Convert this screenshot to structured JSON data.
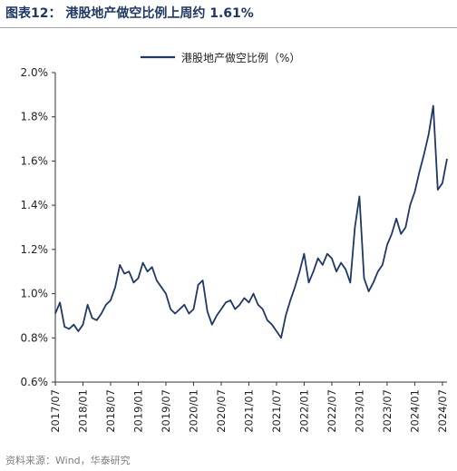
{
  "header": {
    "title": "图表12： 港股地产做空比例上周约 1.61%"
  },
  "source": "资料来源：Wind，华泰研究",
  "colors": {
    "line": "#1f3864",
    "axis": "#333333",
    "title": "#1f3864",
    "source": "#7f7f7f"
  },
  "chart_data": {
    "type": "line",
    "title": "",
    "xlabel": "",
    "ylabel": "",
    "legend": {
      "position": "top-center"
    },
    "grid": false,
    "x_ticks": [
      "2017/07",
      "2018/01",
      "2018/07",
      "2019/01",
      "2019/07",
      "2020/01",
      "2020/07",
      "2021/01",
      "2021/07",
      "2022/01",
      "2022/07",
      "2023/01",
      "2023/07",
      "2024/01",
      "2024/07"
    ],
    "y_ticks": [
      "0.6%",
      "0.8%",
      "1.0%",
      "1.2%",
      "1.4%",
      "1.6%",
      "1.8%",
      "2.0%"
    ],
    "ylim": [
      0.6,
      2.0
    ],
    "xlim": [
      "2017/07",
      "2024/08"
    ],
    "series": [
      {
        "name": "港股地产做空比例（%）",
        "color": "#1f3864",
        "unit": "%",
        "points": [
          [
            "2017/07",
            0.91
          ],
          [
            "2017/08",
            0.96
          ],
          [
            "2017/09",
            0.85
          ],
          [
            "2017/10",
            0.84
          ],
          [
            "2017/11",
            0.86
          ],
          [
            "2017/12",
            0.83
          ],
          [
            "2018/01",
            0.86
          ],
          [
            "2018/02",
            0.95
          ],
          [
            "2018/03",
            0.89
          ],
          [
            "2018/04",
            0.88
          ],
          [
            "2018/05",
            0.91
          ],
          [
            "2018/06",
            0.95
          ],
          [
            "2018/07",
            0.97
          ],
          [
            "2018/08",
            1.03
          ],
          [
            "2018/09",
            1.13
          ],
          [
            "2018/10",
            1.09
          ],
          [
            "2018/11",
            1.1
          ],
          [
            "2018/12",
            1.05
          ],
          [
            "2019/01",
            1.07
          ],
          [
            "2019/02",
            1.14
          ],
          [
            "2019/03",
            1.1
          ],
          [
            "2019/04",
            1.12
          ],
          [
            "2019/05",
            1.06
          ],
          [
            "2019/06",
            1.03
          ],
          [
            "2019/07",
            1.0
          ],
          [
            "2019/08",
            0.93
          ],
          [
            "2019/09",
            0.91
          ],
          [
            "2019/10",
            0.93
          ],
          [
            "2019/11",
            0.95
          ],
          [
            "2019/12",
            0.91
          ],
          [
            "2020/01",
            0.93
          ],
          [
            "2020/02",
            1.04
          ],
          [
            "2020/03",
            1.06
          ],
          [
            "2020/04",
            0.92
          ],
          [
            "2020/05",
            0.86
          ],
          [
            "2020/06",
            0.9
          ],
          [
            "2020/07",
            0.93
          ],
          [
            "2020/08",
            0.96
          ],
          [
            "2020/09",
            0.97
          ],
          [
            "2020/10",
            0.93
          ],
          [
            "2020/11",
            0.95
          ],
          [
            "2020/12",
            0.98
          ],
          [
            "2021/01",
            0.96
          ],
          [
            "2021/02",
            1.0
          ],
          [
            "2021/03",
            0.95
          ],
          [
            "2021/04",
            0.93
          ],
          [
            "2021/05",
            0.88
          ],
          [
            "2021/06",
            0.86
          ],
          [
            "2021/07",
            0.83
          ],
          [
            "2021/08",
            0.8
          ],
          [
            "2021/09",
            0.9
          ],
          [
            "2021/10",
            0.97
          ],
          [
            "2021/11",
            1.03
          ],
          [
            "2021/12",
            1.1
          ],
          [
            "2022/01",
            1.18
          ],
          [
            "2022/02",
            1.05
          ],
          [
            "2022/03",
            1.1
          ],
          [
            "2022/04",
            1.16
          ],
          [
            "2022/05",
            1.13
          ],
          [
            "2022/06",
            1.18
          ],
          [
            "2022/07",
            1.16
          ],
          [
            "2022/08",
            1.1
          ],
          [
            "2022/09",
            1.14
          ],
          [
            "2022/10",
            1.11
          ],
          [
            "2022/11",
            1.05
          ],
          [
            "2022/12",
            1.3
          ],
          [
            "2023/01",
            1.44
          ],
          [
            "2023/02",
            1.07
          ],
          [
            "2023/03",
            1.01
          ],
          [
            "2023/04",
            1.05
          ],
          [
            "2023/05",
            1.1
          ],
          [
            "2023/06",
            1.13
          ],
          [
            "2023/07",
            1.22
          ],
          [
            "2023/08",
            1.27
          ],
          [
            "2023/09",
            1.34
          ],
          [
            "2023/10",
            1.27
          ],
          [
            "2023/11",
            1.3
          ],
          [
            "2023/12",
            1.4
          ],
          [
            "2024/01",
            1.46
          ],
          [
            "2024/02",
            1.55
          ],
          [
            "2024/03",
            1.63
          ],
          [
            "2024/04",
            1.72
          ],
          [
            "2024/05",
            1.85
          ],
          [
            "2024/06",
            1.47
          ],
          [
            "2024/07",
            1.5
          ],
          [
            "2024/08",
            1.61
          ]
        ]
      }
    ]
  }
}
